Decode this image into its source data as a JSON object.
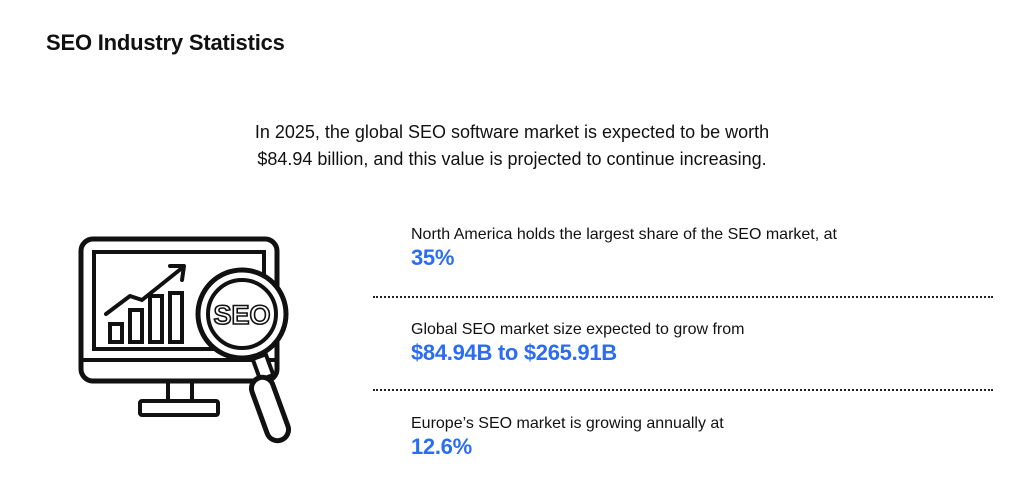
{
  "page": {
    "title": "SEO Industry Statistics",
    "intro_line1": "In 2025, the global SEO software market is expected to be worth",
    "intro_line2": "$84.94 billion, and this value is projected to continue increasing."
  },
  "illustration": {
    "badge_text": "SEO",
    "icons": [
      "monitor-icon",
      "bar-chart-icon",
      "trend-arrow-icon",
      "magnifier-icon"
    ]
  },
  "stats": [
    {
      "label": "North America holds the largest share of the SEO market, at",
      "value": "35%"
    },
    {
      "label": "Global SEO market size expected to grow from",
      "value": "$84.94B to $265.91B"
    },
    {
      "label": "Europe’s SEO market is growing annually at",
      "value": "12.6%"
    }
  ],
  "colors": {
    "accent": "#2b6df2",
    "text": "#111111",
    "background": "#ffffff"
  }
}
